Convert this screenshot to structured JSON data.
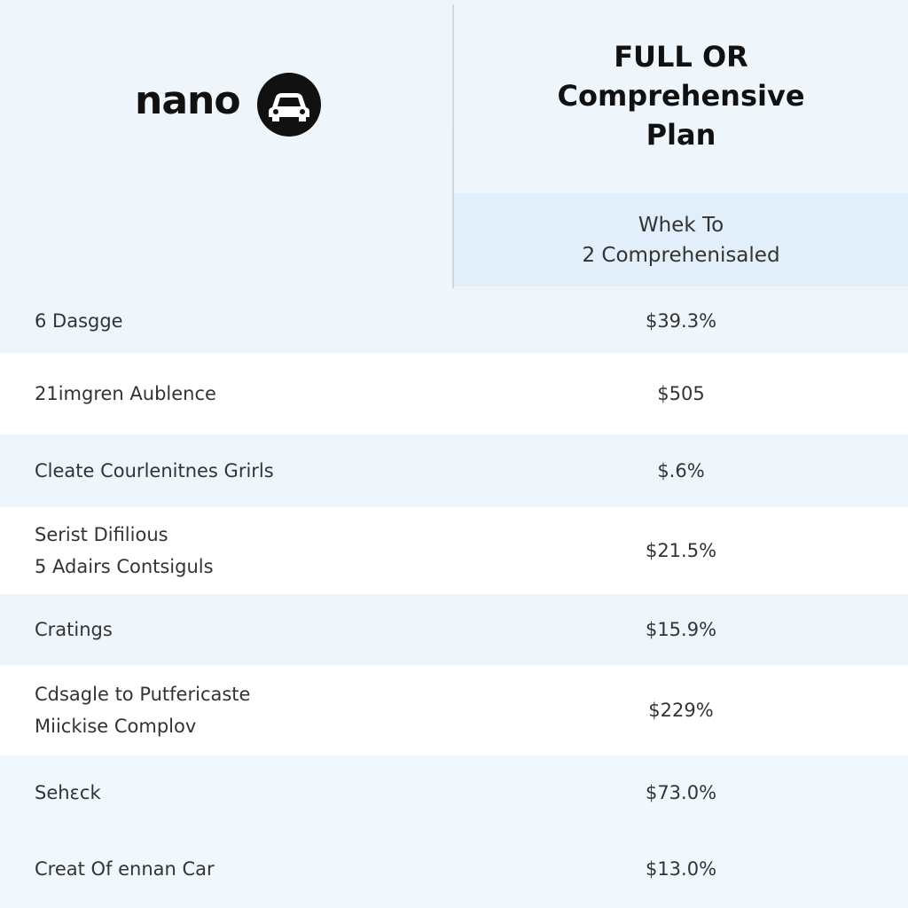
{
  "brand": "nano",
  "header": {
    "title_lines": [
      "FULL OR",
      "Comprehensive",
      "Plan"
    ],
    "subtitle_lines": [
      "Whek To",
      "2 Comprehenisaled"
    ]
  },
  "rows": [
    {
      "label_lines": [
        "6 Dasgge"
      ],
      "value": "$39.3%"
    },
    {
      "label_lines": [
        "21imgren Aublence"
      ],
      "value": "$505"
    },
    {
      "label_lines": [
        "Cleate Courlenitnes Grirls"
      ],
      "value": "$.6%"
    },
    {
      "label_lines": [
        "Serist Difilious",
        "5 Adairs Contsiguls"
      ],
      "value": "$21.5%"
    },
    {
      "label_lines": [
        "Cratings"
      ],
      "value": "$15.9%"
    },
    {
      "label_lines": [
        "Cdsagle to Putfericaste",
        "Miickise Complov"
      ],
      "value": "$229%"
    },
    {
      "label_lines": [
        "Sehεck"
      ],
      "value": "$73.0%"
    },
    {
      "label_lines": [
        "Creat Of ennan Car"
      ],
      "value": "$13.0%"
    }
  ]
}
